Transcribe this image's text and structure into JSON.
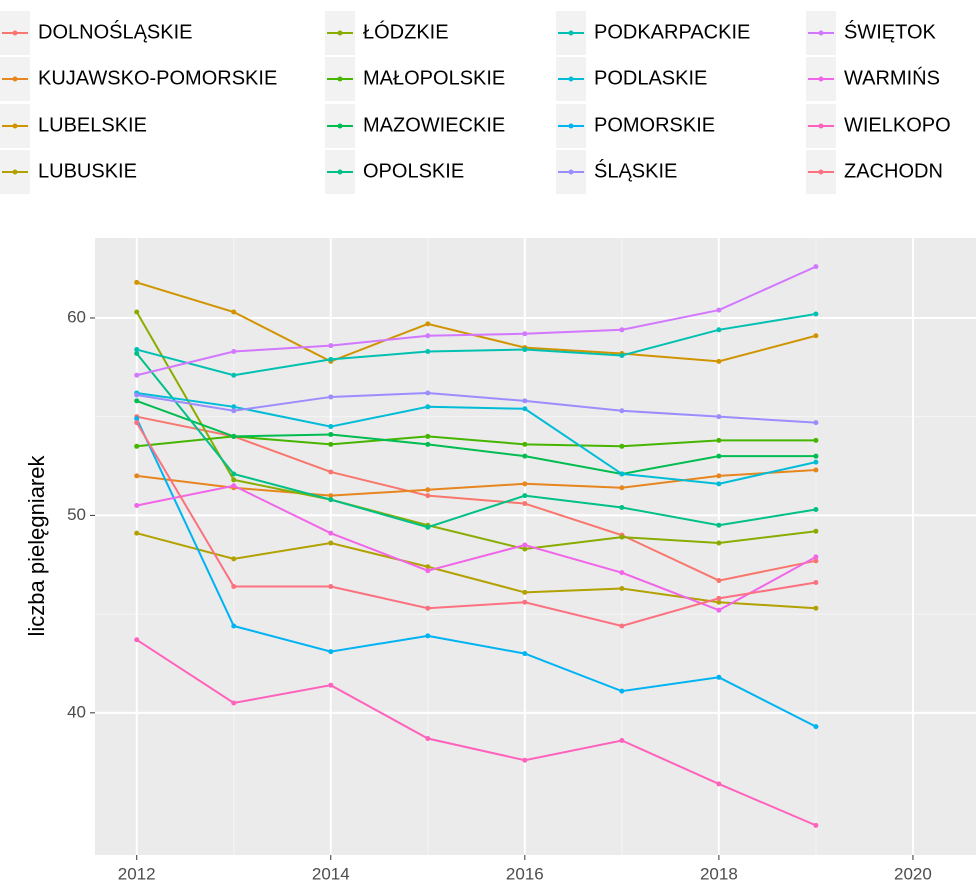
{
  "chart_data": {
    "type": "line",
    "y_label": "liczba pielęgniarek",
    "x": [
      2012,
      2013,
      2014,
      2015,
      2016,
      2017,
      2018,
      2019
    ],
    "xlim": [
      2011.57,
      2020.65
    ],
    "xticks": [
      2012,
      2014,
      2016,
      2018,
      2020
    ],
    "ylim": [
      32.8,
      64.05
    ],
    "yticks": [
      40,
      50,
      60
    ],
    "grid": true,
    "legend": "top",
    "series": [
      {
        "name": "DOLNOŚLĄSKIE",
        "color": "#F8766D",
        "values": [
          55.0,
          54.0,
          52.2,
          51.0,
          50.6,
          49.0,
          46.7,
          47.7
        ]
      },
      {
        "name": "KUJAWSKO-POMORSKIE",
        "color": "#E7851E",
        "values": [
          52.0,
          51.4,
          51.0,
          51.3,
          51.6,
          51.4,
          52.0,
          52.3
        ]
      },
      {
        "name": "LUBELSKIE",
        "color": "#D09400",
        "values": [
          61.8,
          60.3,
          57.8,
          59.7,
          58.5,
          58.2,
          57.8,
          59.1
        ]
      },
      {
        "name": "LUBUSKIE",
        "color": "#B2A100",
        "values": [
          49.1,
          47.8,
          48.6,
          47.4,
          46.1,
          46.3,
          45.6,
          45.3
        ]
      },
      {
        "name": "ŁÓDZKIE",
        "color": "#89AC00",
        "values": [
          60.3,
          51.8,
          50.8,
          49.5,
          48.3,
          48.9,
          48.6,
          49.2
        ]
      },
      {
        "name": "MAŁOPOLSKIE",
        "color": "#45B500",
        "values": [
          53.5,
          54.0,
          53.6,
          54.0,
          53.6,
          53.5,
          53.8,
          53.8
        ]
      },
      {
        "name": "MAZOWIECKIE",
        "color": "#00BC51",
        "values": [
          55.8,
          54.0,
          54.1,
          53.6,
          53.0,
          52.1,
          53.0,
          53.0
        ]
      },
      {
        "name": "OPOLSKIE",
        "color": "#00C087",
        "values": [
          58.2,
          52.1,
          50.8,
          49.4,
          51.0,
          50.4,
          49.5,
          50.3
        ]
      },
      {
        "name": "PODKARPACKIE",
        "color": "#00C0B2",
        "values": [
          58.4,
          57.1,
          57.9,
          58.3,
          58.4,
          58.1,
          59.4,
          60.2
        ]
      },
      {
        "name": "PODLASKIE",
        "color": "#00BCD6",
        "values": [
          56.2,
          55.5,
          54.5,
          55.5,
          55.4,
          52.1,
          51.6,
          52.7
        ]
      },
      {
        "name": "POMORSKIE",
        "color": "#00B3F2",
        "values": [
          54.9,
          44.4,
          43.1,
          43.9,
          43.0,
          41.1,
          41.8,
          39.3
        ]
      },
      {
        "name": "ŚLĄSKIE",
        "color": "#9C8DFF",
        "values": [
          56.1,
          55.3,
          56.0,
          56.2,
          55.8,
          55.3,
          55.0,
          54.7
        ]
      },
      {
        "name": "ŚWIĘTOK",
        "color": "#D277FF",
        "values": [
          57.1,
          58.3,
          58.6,
          59.1,
          59.2,
          59.4,
          60.4,
          62.6
        ]
      },
      {
        "name": "WARMIŃS",
        "color": "#F166E8",
        "values": [
          50.5,
          51.5,
          49.1,
          47.2,
          48.5,
          47.1,
          45.2,
          47.9
        ]
      },
      {
        "name": "WIELKOPO",
        "color": "#FF62BC",
        "values": [
          43.7,
          40.5,
          41.4,
          38.7,
          37.6,
          38.6,
          36.4,
          34.3
        ]
      },
      {
        "name": "ZACHODN",
        "color": "#FC717F",
        "values": [
          54.7,
          46.4,
          46.4,
          45.3,
          45.6,
          44.4,
          45.8,
          46.6
        ]
      }
    ]
  }
}
